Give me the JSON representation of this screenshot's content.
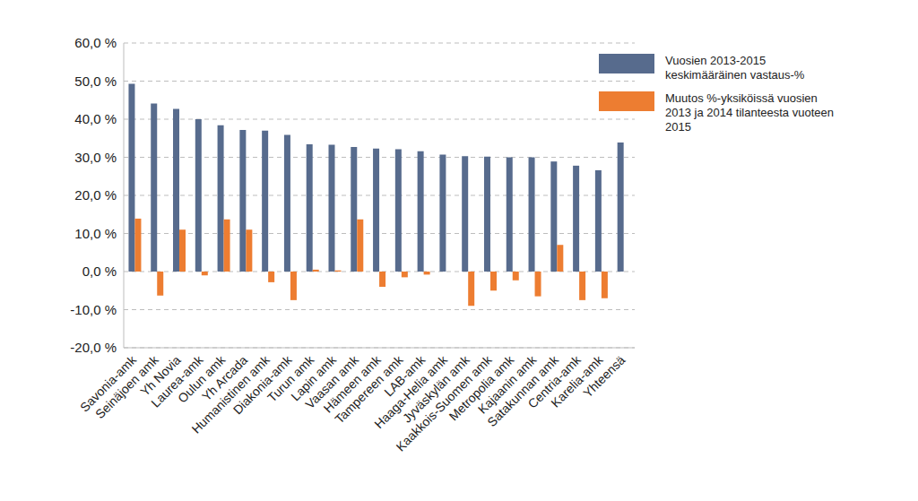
{
  "chart_data": {
    "type": "bar",
    "categories": [
      "Savonia-amk",
      "Seinäjoen amk",
      "Yh Novia",
      "Laurea-amk",
      "Oulun amk",
      "Yh Arcada",
      "Humanistinen amk",
      "Diakonia-amk",
      "Turun amk",
      "Lapin amk",
      "Vaasan amk",
      "Hämeen amk",
      "Tampereen amk",
      "LAB-amk",
      "Haaga-Helia amk",
      "Jyväskylän amk",
      "Kaakkois-Suomen amk",
      "Metropolia amk",
      "Kajaanin amk",
      "Satakunnan amk",
      "Centria-amk",
      "Karelia-amk",
      "Yhteensä"
    ],
    "series": [
      {
        "name": "Vuosien 2013-2015 keskimääräinen vastaus-%",
        "color": "#576b8d",
        "values": [
          49.3,
          44.1,
          42.7,
          40.0,
          38.4,
          37.2,
          37.0,
          35.9,
          33.4,
          33.3,
          32.7,
          32.3,
          32.1,
          31.6,
          30.7,
          30.3,
          30.2,
          30.0,
          30.0,
          28.9,
          27.8,
          26.6,
          33.9
        ]
      },
      {
        "name": "Muutos %-yksiköissä vuosien 2013 ja 2014 tilanteesta vuoteen 2015",
        "color": "#ed7d31",
        "values": [
          13.9,
          -6.3,
          11.0,
          -1.0,
          13.7,
          11.0,
          -2.8,
          -7.5,
          0.5,
          0.3,
          13.7,
          -4.0,
          -1.5,
          -0.8,
          0,
          -9.0,
          -5.0,
          -2.3,
          -6.5,
          7.0,
          -7.5,
          -7.0,
          null
        ]
      }
    ],
    "ylim": [
      -20,
      60
    ],
    "yticks": [
      {
        "value": -20,
        "label": "-20,0 %"
      },
      {
        "value": -10,
        "label": "-10,0 %"
      },
      {
        "value": 0,
        "label": "0,0 %"
      },
      {
        "value": 10,
        "label": "10,0 %"
      },
      {
        "value": 20,
        "label": "20,0 %"
      },
      {
        "value": 30,
        "label": "30,0 %"
      },
      {
        "value": 40,
        "label": "40,0 %"
      },
      {
        "value": 50,
        "label": "50,0 %"
      },
      {
        "value": 60,
        "label": "60,0 %"
      }
    ],
    "grid": true,
    "legend": "upper right"
  }
}
